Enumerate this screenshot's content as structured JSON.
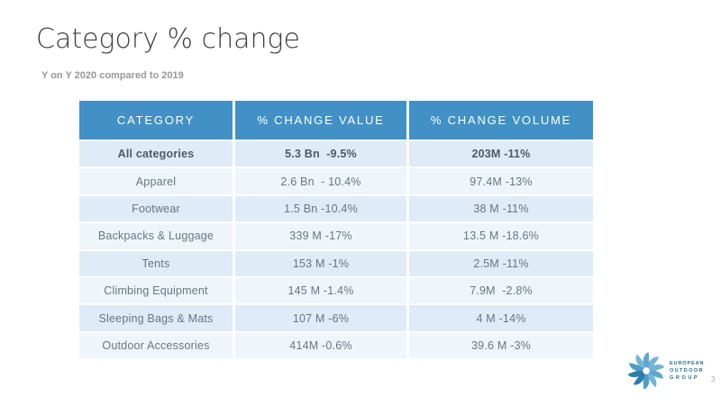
{
  "slide": {
    "title": "Category % change",
    "subtitle": "Y on Y 2020 compared to 2019",
    "page_number": "3"
  },
  "table": {
    "headers": [
      "CATEGORY",
      "% CHANGE VALUE",
      "% CHANGE VOLUME"
    ],
    "rows": [
      {
        "category": "All categories",
        "value": "5.3 Bn  -9.5%",
        "volume": "203M -11%",
        "emphasis": true
      },
      {
        "category": "Apparel",
        "value": "2.6 Bn  - 10.4%",
        "volume": "97.4M -13%",
        "emphasis": false
      },
      {
        "category": "Footwear",
        "value": "1.5 Bn -10.4%",
        "volume": "38 M -11%",
        "emphasis": false
      },
      {
        "category": "Backpacks & Luggage",
        "value": "339 M -17%",
        "volume": "13.5 M -18.6%",
        "emphasis": false
      },
      {
        "category": "Tents",
        "value": "153 M -1%",
        "volume": "2.5M -11%",
        "emphasis": false
      },
      {
        "category": "Climbing Equipment",
        "value": "145 M -1.4%",
        "volume": "7.9M  -2.8%",
        "emphasis": false
      },
      {
        "category": "Sleeping Bags & Mats",
        "value": "107 M -6%",
        "volume": "4 M -14%",
        "emphasis": false
      },
      {
        "category": "Outdoor Accessories",
        "value": "414M -0.6%",
        "volume": "39.6 M -3%",
        "emphasis": false
      }
    ]
  },
  "logo": {
    "lines": [
      "EUROPEAN",
      "OUTDOOR",
      "GROUP"
    ]
  },
  "colors": {
    "header_bg": "#4191c7",
    "header_text": "#ffffff",
    "row_odd": "#dfebf6",
    "row_even": "#eef5fb",
    "body_text": "#6b7680",
    "body_text_bold": "#4e5a64",
    "title_text": "#3d3d3d",
    "subtitle_text": "#979797",
    "logo_text": "#1c6c96",
    "logo_blue_light": "#74b4d6",
    "logo_blue_dark": "#2a7fae"
  }
}
